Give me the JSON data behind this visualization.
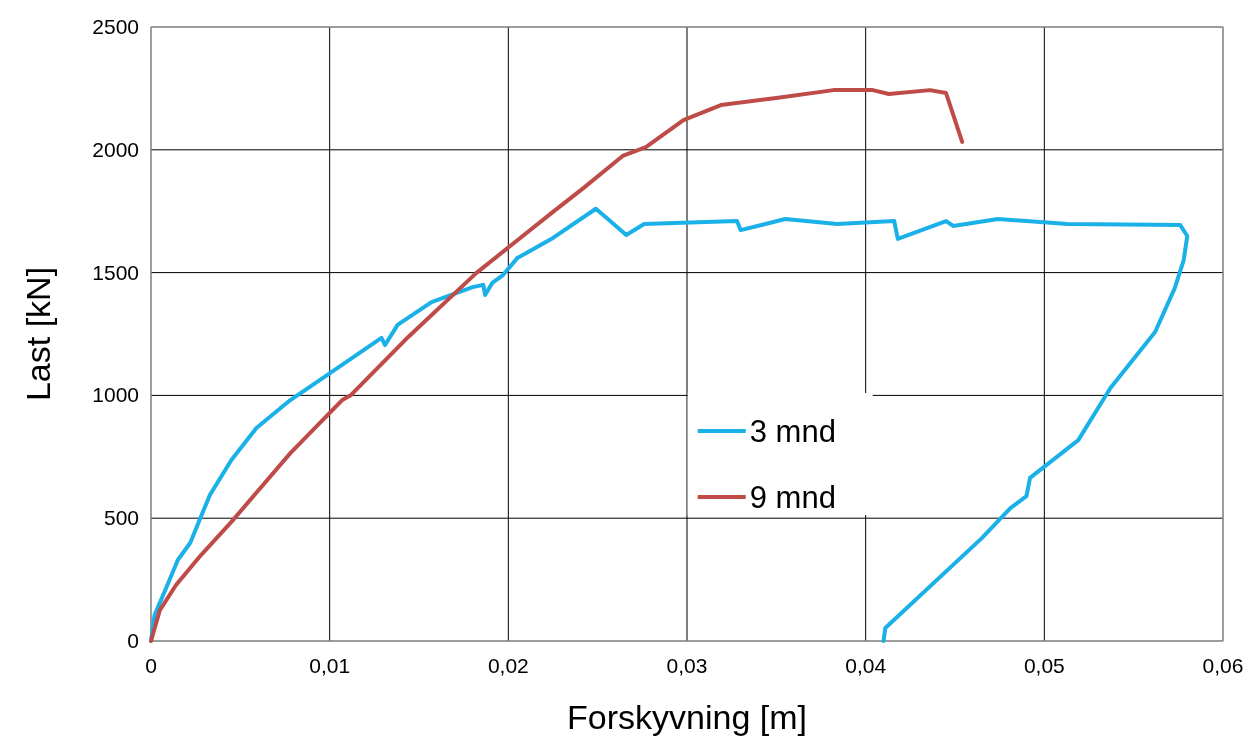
{
  "chart_data": {
    "type": "line",
    "xlabel": "Forskyvning [m]",
    "ylabel": "Last [kN]",
    "xlim": [
      0,
      0.06
    ],
    "xticks": [
      {
        "value": 0,
        "label": "0"
      },
      {
        "value": 0.01,
        "label": "0,01"
      },
      {
        "value": 0.02,
        "label": "0,02"
      },
      {
        "value": 0.03,
        "label": "0,03"
      },
      {
        "value": 0.04,
        "label": "0,04"
      },
      {
        "value": 0.05,
        "label": "0,05"
      },
      {
        "value": 0.06,
        "label": "0,06"
      }
    ],
    "ylim": [
      0,
      2500
    ],
    "yticks": [
      0,
      500,
      1000,
      1500,
      2000,
      2500
    ],
    "grid": true,
    "legend": "bottom right",
    "line_style": "solid",
    "marker": "none",
    "series": [
      {
        "name": "3 mnd",
        "color": "#1ab0e8",
        "x": [
          0,
          0.0002,
          0.0008,
          0.0015,
          0.0022,
          0.0027,
          0.0033,
          0.0045,
          0.0059,
          0.0078,
          0.0101,
          0.0129,
          0.0131,
          0.0138,
          0.0157,
          0.018,
          0.0186,
          0.0187,
          0.0191,
          0.0197,
          0.0205,
          0.0225,
          0.0249,
          0.0257,
          0.0266,
          0.0276,
          0.0328,
          0.033,
          0.0355,
          0.0384,
          0.0416,
          0.0418,
          0.0445,
          0.0449,
          0.0474,
          0.0513,
          0.0576,
          0.058,
          0.0578,
          0.0573,
          0.0562,
          0.0537,
          0.0519,
          0.0492,
          0.049,
          0.0481,
          0.0465,
          0.0411,
          0.041
        ],
        "values": [
          0,
          106,
          208,
          330,
          400,
          490,
          595,
          737,
          867,
          981,
          1095,
          1234,
          1205,
          1287,
          1380,
          1441,
          1450,
          1409,
          1458,
          1490,
          1559,
          1641,
          1760,
          1710,
          1653,
          1698,
          1710,
          1673,
          1718,
          1698,
          1710,
          1637,
          1710,
          1690,
          1718,
          1698,
          1694,
          1649,
          1551,
          1437,
          1258,
          1030,
          818,
          664,
          590,
          541,
          419,
          53,
          0
        ]
      },
      {
        "name": "9 mnd",
        "color": "#be4b48",
        "x": [
          0,
          0.0005,
          0.0014,
          0.0028,
          0.0045,
          0.0078,
          0.0107,
          0.0112,
          0.0144,
          0.0182,
          0.0225,
          0.0242,
          0.0264,
          0.0277,
          0.0298,
          0.0319,
          0.035,
          0.0382,
          0.0404,
          0.0413,
          0.0436,
          0.0445,
          0.0454
        ],
        "values": [
          0,
          126,
          228,
          350,
          485,
          765,
          981,
          1002,
          1238,
          1498,
          1747,
          1844,
          1975,
          2011,
          2121,
          2182,
          2211,
          2243,
          2243,
          2227,
          2243,
          2231,
          2032
        ]
      }
    ]
  }
}
